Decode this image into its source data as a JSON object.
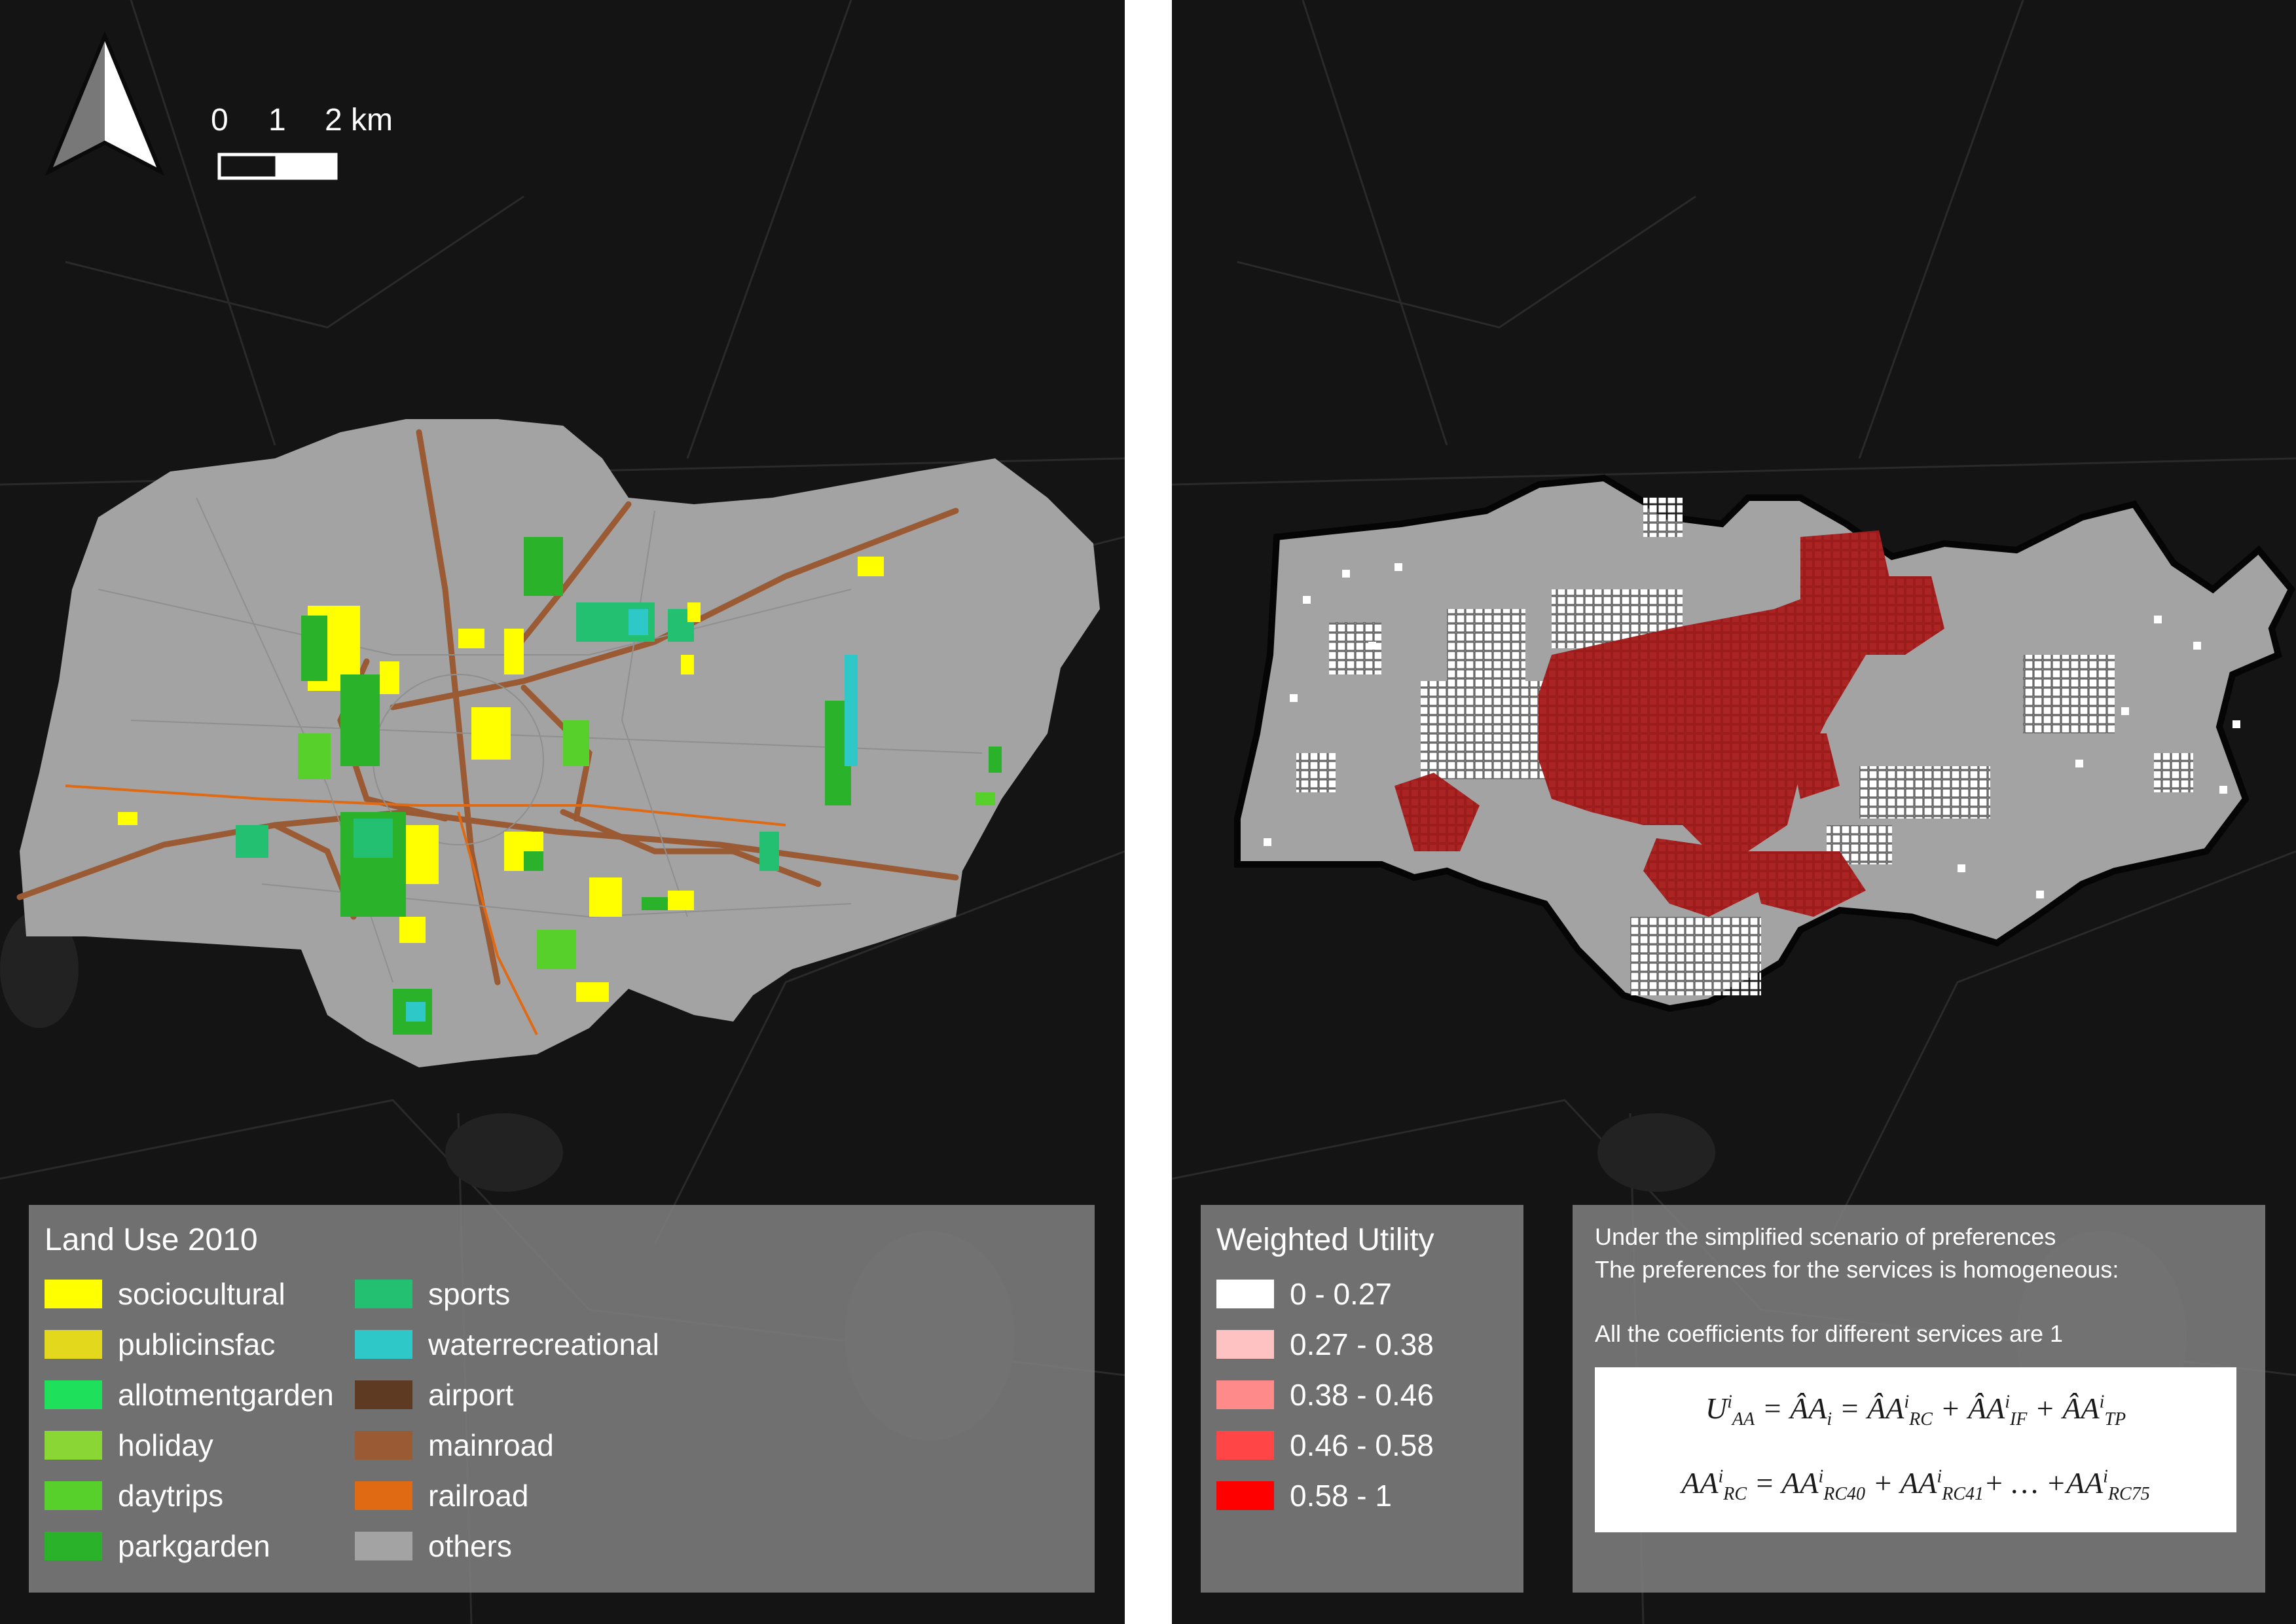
{
  "left_map": {
    "north_arrow_icon": "north-arrow-icon",
    "scale_bar": {
      "labels": [
        "0",
        "1",
        "2 km"
      ]
    },
    "legend": {
      "title": "Land Use 2010",
      "items": [
        {
          "label": "sociocultural",
          "color": "#ffff00"
        },
        {
          "label": "publicinsfac",
          "color": "#e4d81c"
        },
        {
          "label": "allotmentgarden",
          "color": "#1fe05a"
        },
        {
          "label": "holiday",
          "color": "#8ad634"
        },
        {
          "label": "daytrips",
          "color": "#58d02c"
        },
        {
          "label": "parkgarden",
          "color": "#2ab32a"
        },
        {
          "label": "sports",
          "color": "#22c070"
        },
        {
          "label": "waterrecreational",
          "color": "#2ec8c8"
        },
        {
          "label": "airport",
          "color": "#5e3a22"
        },
        {
          "label": "mainroad",
          "color": "#9a5a34"
        },
        {
          "label": "railroad",
          "color": "#e06a14"
        },
        {
          "label": "others",
          "color": "#a3a3a3"
        }
      ]
    }
  },
  "right_map": {
    "legend": {
      "title": "Weighted Utility",
      "items": [
        {
          "label": "0 - 0.27",
          "color": "#ffffff"
        },
        {
          "label": "0.27 - 0.38",
          "color": "#ffc2c2"
        },
        {
          "label": "0.38 - 0.46",
          "color": "#ff8a8a"
        },
        {
          "label": "0.46 - 0.58",
          "color": "#ff4545"
        },
        {
          "label": "0.58 - 1",
          "color": "#ff0000"
        }
      ]
    },
    "note": {
      "line1": "Under the simplified scenario of preferences",
      "line2": "The preferences for the services is homogeneous:",
      "line3": "All the coefficients for different services are 1"
    }
  },
  "colors": {
    "basemap": "#141414",
    "region_fill": "#a3a3a3",
    "utility_high": "#9c1c1c",
    "utility_cell": "#ffffff"
  }
}
